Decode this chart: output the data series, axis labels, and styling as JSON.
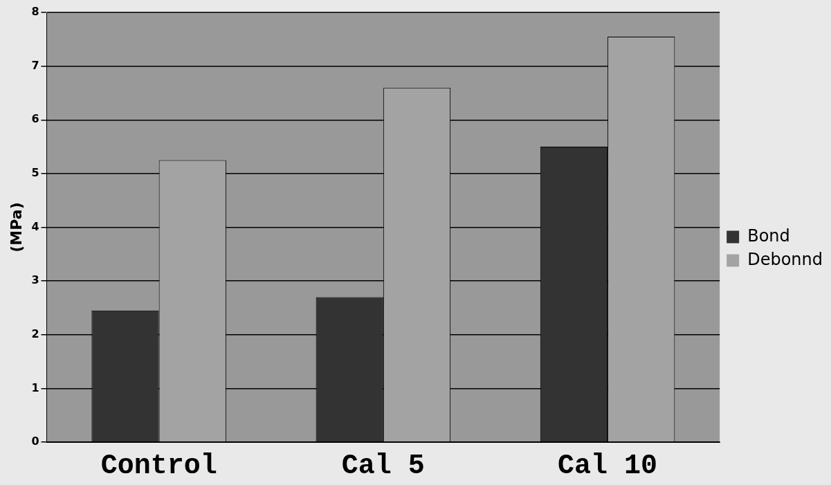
{
  "chart_data": {
    "type": "bar",
    "ylabel": "(MPa)",
    "categories": [
      "Control",
      "Cal 5",
      "Cal 10"
    ],
    "series": [
      {
        "name": "Bond",
        "color": "#333333",
        "values": [
          2.45,
          2.7,
          5.5
        ]
      },
      {
        "name": "Debonnd",
        "color": "#a3a3a3",
        "values": [
          5.25,
          6.6,
          7.55
        ]
      }
    ],
    "ylim": [
      0,
      8
    ],
    "yticks": [
      0,
      1,
      2,
      3,
      4,
      5,
      6,
      7,
      8
    ],
    "grid": "y",
    "legend": "right"
  }
}
